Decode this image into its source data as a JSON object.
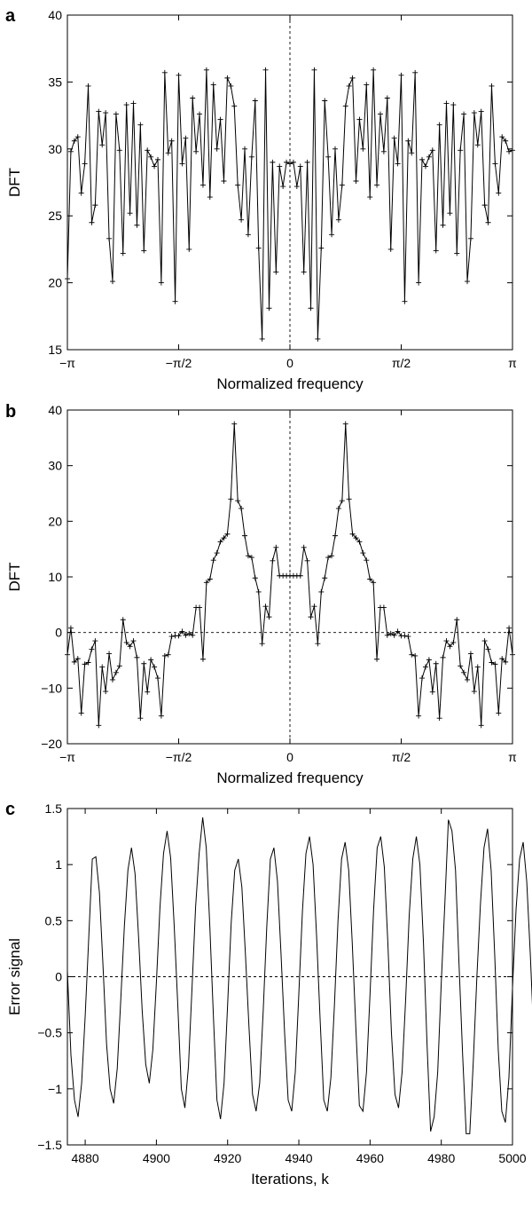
{
  "figure": {
    "panels": [
      {
        "label": "a",
        "xlabel": "Normalized frequency",
        "ylabel": "DFT",
        "xtick_labels": [
          "−π",
          "−π/2",
          "0",
          "π/2",
          "π"
        ],
        "ytick_labels": [
          "15",
          "20",
          "25",
          "30",
          "35",
          "40"
        ]
      },
      {
        "label": "b",
        "xlabel": "Normalized frequency",
        "ylabel": "DFT",
        "xtick_labels": [
          "−π",
          "−π/2",
          "0",
          "π/2",
          "π"
        ],
        "ytick_labels": [
          "−20",
          "−10",
          "0",
          "10",
          "20",
          "30",
          "40"
        ]
      },
      {
        "label": "c",
        "xlabel": "Iterations, k",
        "ylabel": "Error signal",
        "xtick_labels": [
          "4880",
          "4900",
          "4920",
          "4940",
          "4960",
          "4980",
          "5000"
        ],
        "ytick_labels": [
          "−1.5",
          "−1",
          "−0.5",
          "0",
          "0.5",
          "1",
          "1.5"
        ]
      }
    ]
  },
  "chart_data": [
    {
      "type": "line",
      "panel": "a",
      "xlabel": "Normalized frequency",
      "ylabel": "DFT",
      "xlim": [
        -3.1416,
        3.1416
      ],
      "ylim": [
        15,
        40
      ],
      "marker": "+",
      "reference_lines": [
        {
          "orientation": "vertical",
          "x": 0,
          "style": "dashed"
        }
      ],
      "x": [
        -3.1416,
        -3.0925,
        -3.0434,
        -2.9943,
        -2.9452,
        -2.8962,
        -2.8471,
        -2.798,
        -2.7489,
        -2.6998,
        -2.6507,
        -2.6016,
        -2.5525,
        -2.5035,
        -2.4544,
        -2.4053,
        -2.3562,
        -2.3071,
        -2.258,
        -2.2089,
        -2.1598,
        -2.1108,
        -2.0617,
        -2.0126,
        -1.9635,
        -1.9144,
        -1.8653,
        -1.8162,
        -1.7671,
        -1.7181,
        -1.669,
        -1.6199,
        -1.5708,
        -1.5217,
        -1.4726,
        -1.4235,
        -1.3744,
        -1.3254,
        -1.2763,
        -1.2272,
        -1.1781,
        -1.129,
        -1.0799,
        -1.0308,
        -0.9817,
        -0.9327,
        -0.8836,
        -0.8345,
        -0.7854,
        -0.7363,
        -0.6872,
        -0.6381,
        -0.589,
        -0.54,
        -0.4909,
        -0.4418,
        -0.3927,
        -0.3436,
        -0.2945,
        -0.2454,
        -0.1963,
        -0.1473,
        -0.0982,
        -0.0491,
        0,
        0.0491,
        0.0982,
        0.1473,
        0.1963,
        0.2454,
        0.2945,
        0.3436,
        0.3927,
        0.4418,
        0.4909,
        0.54,
        0.589,
        0.6381,
        0.6872,
        0.7363,
        0.7854,
        0.8345,
        0.8836,
        0.9327,
        0.9817,
        1.0308,
        1.0799,
        1.129,
        1.1781,
        1.2272,
        1.2763,
        1.3254,
        1.3744,
        1.4235,
        1.4726,
        1.5217,
        1.5708,
        1.6199,
        1.669,
        1.7181,
        1.7671,
        1.8162,
        1.8653,
        1.9144,
        1.9635,
        2.0126,
        2.0617,
        2.1108,
        2.1598,
        2.2089,
        2.258,
        2.3071,
        2.3562,
        2.4053,
        2.4544,
        2.5035,
        2.5525,
        2.6016,
        2.6507,
        2.6998,
        2.7489,
        2.798,
        2.8471,
        2.8962,
        2.9452,
        2.9943,
        3.0434,
        3.0925,
        3.1416
      ],
      "y": [
        20.3,
        29.8,
        30.6,
        30.9,
        26.7,
        28.9,
        34.7,
        24.5,
        25.8,
        32.8,
        30.3,
        32.7,
        23.3,
        20.1,
        32.6,
        29.9,
        22.2,
        33.3,
        25.2,
        33.4,
        24.3,
        31.8,
        22.4,
        29.9,
        29.4,
        28.7,
        29.2,
        20.0,
        35.7,
        29.7,
        30.6,
        18.6,
        35.5,
        28.9,
        30.8,
        22.5,
        33.8,
        29.8,
        32.6,
        27.3,
        35.9,
        26.4,
        34.8,
        30.0,
        32.2,
        27.6,
        35.3,
        34.7,
        33.2,
        27.3,
        24.7,
        30.0,
        23.6,
        29.4,
        33.6,
        22.6,
        15.8,
        35.9,
        18.1,
        29.0,
        20.8,
        28.7,
        27.2,
        29.0,
        28.9,
        29.0,
        27.2,
        28.7,
        20.8,
        29.0,
        18.1,
        35.9,
        15.8,
        22.6,
        33.6,
        29.4,
        23.6,
        30.0,
        24.7,
        27.3,
        33.2,
        34.7,
        35.3,
        27.6,
        32.2,
        30.0,
        34.8,
        26.4,
        35.9,
        27.3,
        32.6,
        29.8,
        33.8,
        22.5,
        30.8,
        28.9,
        35.5,
        18.6,
        30.6,
        29.7,
        35.7,
        20.0,
        29.2,
        28.7,
        29.4,
        29.9,
        22.4,
        31.8,
        24.3,
        33.4,
        25.2,
        33.3,
        22.2,
        29.9,
        32.6,
        20.1,
        23.3,
        32.7,
        30.3,
        32.8,
        25.8,
        24.5,
        34.7,
        28.9,
        26.7,
        30.9,
        30.6,
        29.8,
        29.9
      ]
    },
    {
      "type": "line",
      "panel": "b",
      "xlabel": "Normalized frequency",
      "ylabel": "DFT",
      "xlim": [
        -3.1416,
        3.1416
      ],
      "ylim": [
        -20,
        40
      ],
      "marker": "+",
      "reference_lines": [
        {
          "orientation": "vertical",
          "x": 0,
          "style": "dashed"
        },
        {
          "orientation": "horizontal",
          "y": 0,
          "style": "dashed"
        }
      ],
      "x": [
        -3.1416,
        -3.0925,
        -3.0434,
        -2.9943,
        -2.9452,
        -2.8962,
        -2.8471,
        -2.798,
        -2.7489,
        -2.6998,
        -2.6507,
        -2.6016,
        -2.5525,
        -2.5035,
        -2.4544,
        -2.4053,
        -2.3562,
        -2.3071,
        -2.258,
        -2.2089,
        -2.1598,
        -2.1108,
        -2.0617,
        -2.0126,
        -1.9635,
        -1.9144,
        -1.8653,
        -1.8162,
        -1.7671,
        -1.7181,
        -1.669,
        -1.6199,
        -1.5708,
        -1.5217,
        -1.4726,
        -1.4235,
        -1.3744,
        -1.3254,
        -1.2763,
        -1.2272,
        -1.1781,
        -1.129,
        -1.0799,
        -1.0308,
        -0.9817,
        -0.9327,
        -0.8836,
        -0.8345,
        -0.7854,
        -0.7363,
        -0.6872,
        -0.6381,
        -0.589,
        -0.54,
        -0.4909,
        -0.4418,
        -0.3927,
        -0.3436,
        -0.2945,
        -0.2454,
        -0.1963,
        -0.1473,
        -0.0982,
        -0.0491,
        0,
        0.0491,
        0.0982,
        0.1473,
        0.1963,
        0.2454,
        0.2945,
        0.3436,
        0.3927,
        0.4418,
        0.4909,
        0.54,
        0.589,
        0.6381,
        0.6872,
        0.7363,
        0.7854,
        0.8345,
        0.8836,
        0.9327,
        0.9817,
        1.0308,
        1.0799,
        1.129,
        1.1781,
        1.2272,
        1.2763,
        1.3254,
        1.3744,
        1.4235,
        1.4726,
        1.5217,
        1.5708,
        1.6199,
        1.669,
        1.7181,
        1.7671,
        1.8162,
        1.8653,
        1.9144,
        1.9635,
        2.0126,
        2.0617,
        2.1108,
        2.1598,
        2.2089,
        2.258,
        2.3071,
        2.3562,
        2.4053,
        2.4544,
        2.5035,
        2.5525,
        2.6016,
        2.6507,
        2.6998,
        2.7489,
        2.798,
        2.8471,
        2.8962,
        2.9452,
        2.9943,
        3.0434,
        3.0925,
        3.1416
      ],
      "y": [
        -4.0,
        0.8,
        -5.3,
        -4.7,
        -14.5,
        -5.7,
        -5.4,
        -3.0,
        -1.5,
        -16.7,
        -6.2,
        -10.6,
        -3.8,
        -8.5,
        -7.2,
        -6.0,
        2.3,
        -1.8,
        -2.5,
        -1.5,
        -4.5,
        -15.4,
        -5.6,
        -10.7,
        -4.9,
        -6.2,
        -8.2,
        -15.0,
        -4.2,
        -4.0,
        -0.7,
        -0.6,
        -0.6,
        0.2,
        -0.5,
        -0.2,
        -0.5,
        4.5,
        4.5,
        -4.8,
        9.0,
        9.6,
        13.0,
        14.3,
        16.3,
        17.0,
        17.7,
        24.0,
        37.5,
        23.7,
        22.3,
        17.4,
        13.8,
        13.5,
        9.8,
        7.3,
        -2.0,
        4.7,
        2.8,
        12.9,
        15.3,
        10.2,
        10.2,
        10.2,
        10.2,
        10.2,
        10.2,
        10.2,
        15.3,
        12.9,
        2.8,
        4.7,
        -2.0,
        7.3,
        9.8,
        13.5,
        13.8,
        17.4,
        22.3,
        23.7,
        37.5,
        24.0,
        17.7,
        17.0,
        16.3,
        14.3,
        13.0,
        9.6,
        9.0,
        -4.8,
        4.5,
        4.5,
        -0.5,
        -0.2,
        -0.5,
        0.2,
        -0.6,
        -0.6,
        -0.7,
        -4.0,
        -4.2,
        -15.0,
        -8.2,
        -6.2,
        -4.9,
        -10.7,
        -5.6,
        -15.4,
        -4.5,
        -1.5,
        -2.5,
        -1.8,
        2.3,
        -6.0,
        -7.2,
        -8.5,
        -3.8,
        -10.6,
        -6.2,
        -16.7,
        -1.5,
        -3.0,
        -5.4,
        -5.7,
        -14.5,
        -4.7,
        -5.3,
        0.8,
        -4.0
      ]
    },
    {
      "type": "line",
      "panel": "c",
      "xlabel": "Iterations, k",
      "ylabel": "Error signal",
      "xlim": [
        4875,
        5000
      ],
      "ylim": [
        -1.5,
        1.5
      ],
      "reference_lines": [
        {
          "orientation": "horizontal",
          "y": 0,
          "style": "dashed"
        }
      ],
      "x_start": 4875,
      "x_step": 1,
      "y": [
        0.05,
        -0.7,
        -1.1,
        -1.25,
        -0.95,
        -0.35,
        0.35,
        1.05,
        1.07,
        0.75,
        0.1,
        -0.6,
        -1.0,
        -1.13,
        -0.82,
        -0.2,
        0.45,
        0.95,
        1.15,
        0.92,
        0.35,
        -0.3,
        -0.78,
        -0.95,
        -0.65,
        -0.05,
        0.62,
        1.1,
        1.3,
        1.06,
        0.45,
        -0.25,
        -1.0,
        -1.17,
        -0.8,
        -0.1,
        0.62,
        1.1,
        1.42,
        1.15,
        0.45,
        -0.35,
        -1.1,
        -1.27,
        -0.95,
        -0.25,
        0.48,
        0.95,
        1.05,
        0.8,
        0.2,
        -0.45,
        -1.05,
        -1.2,
        -0.95,
        -0.3,
        0.45,
        1.05,
        1.15,
        0.85,
        0.2,
        -0.5,
        -1.1,
        -1.2,
        -0.85,
        -0.15,
        0.58,
        1.1,
        1.25,
        1.0,
        0.35,
        -0.4,
        -1.1,
        -1.2,
        -0.9,
        -0.25,
        0.5,
        1.05,
        1.2,
        0.95,
        0.3,
        -0.45,
        -1.15,
        -1.2,
        -0.85,
        -0.15,
        0.6,
        1.15,
        1.25,
        0.98,
        0.3,
        -0.5,
        -1.05,
        -1.17,
        -0.85,
        -0.2,
        0.55,
        1.05,
        1.25,
        1.0,
        0.3,
        -0.6,
        -1.38,
        -1.25,
        -0.85,
        -0.05,
        0.65,
        1.4,
        1.3,
        0.95,
        0.1,
        -0.7,
        -1.4,
        -1.4,
        -0.75,
        0.0,
        0.65,
        1.15,
        1.32,
        0.95,
        0.2,
        -0.65,
        -1.2,
        -1.3,
        -0.9,
        -0.1,
        0.6,
        1.05,
        1.2,
        0.85,
        0.2,
        -0.55,
        -1.15,
        -1.38,
        -1.0,
        -0.2
      ]
    }
  ]
}
